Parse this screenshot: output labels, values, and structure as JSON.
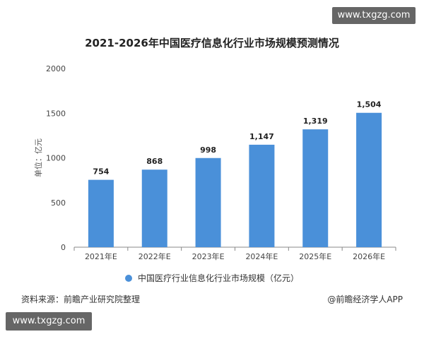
{
  "watermark_top": "www.txgzg.com",
  "watermark_bottom": "www.txgzg.com",
  "source_note": "资料来源：前瞻产业研究院整理",
  "credit": "@前瞻经济学人APP",
  "colors": {
    "bar": "#4a90d9",
    "axis": "#888888",
    "grid": "#e6e6e6"
  },
  "chart_data": {
    "type": "bar",
    "title": "2021-2026年中国医疗信息化行业市场规模预测情况",
    "ylabel": "单位：亿元",
    "xlabel": "",
    "categories": [
      "2021年E",
      "2022年E",
      "2023年E",
      "2024年E",
      "2025年E",
      "2026年E"
    ],
    "series": [
      {
        "name": "中国医疗行业信息化行业市场规模（亿元）",
        "values": [
          754,
          868,
          998,
          1147,
          1319,
          1504
        ]
      }
    ],
    "data_labels": [
      "754",
      "868",
      "998",
      "1,147",
      "1,319",
      "1,504"
    ],
    "ylim": [
      0,
      2000
    ],
    "yticks": [
      "0",
      "500",
      "1000",
      "1500",
      "2000"
    ],
    "grid": false,
    "legend": "bottom"
  }
}
